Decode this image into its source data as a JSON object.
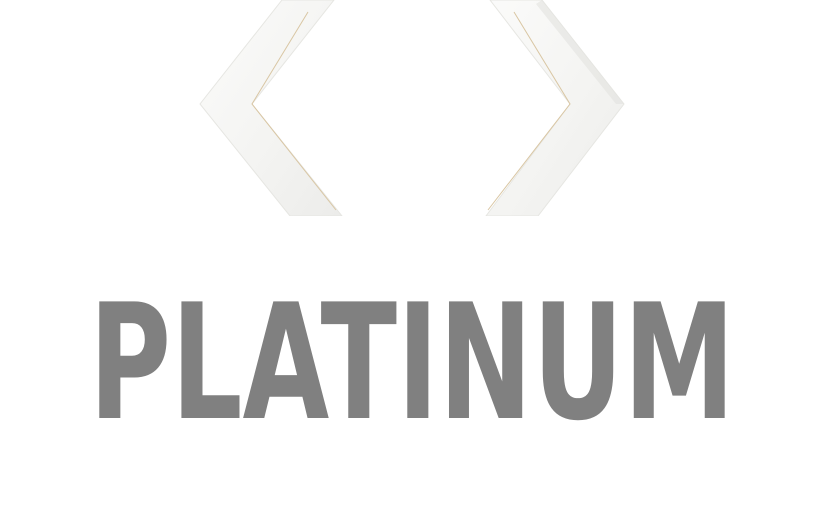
{
  "brand": {
    "wordmark": "PLATINUM",
    "emblem_icon": "hexagon-frame-icon"
  },
  "colors": {
    "background": "#ffffff",
    "wordmark": "#808080",
    "frame_fill": "#f7f7f5",
    "frame_edge": "#e4e4e0",
    "frame_inner_line": "#dcc8a4"
  }
}
